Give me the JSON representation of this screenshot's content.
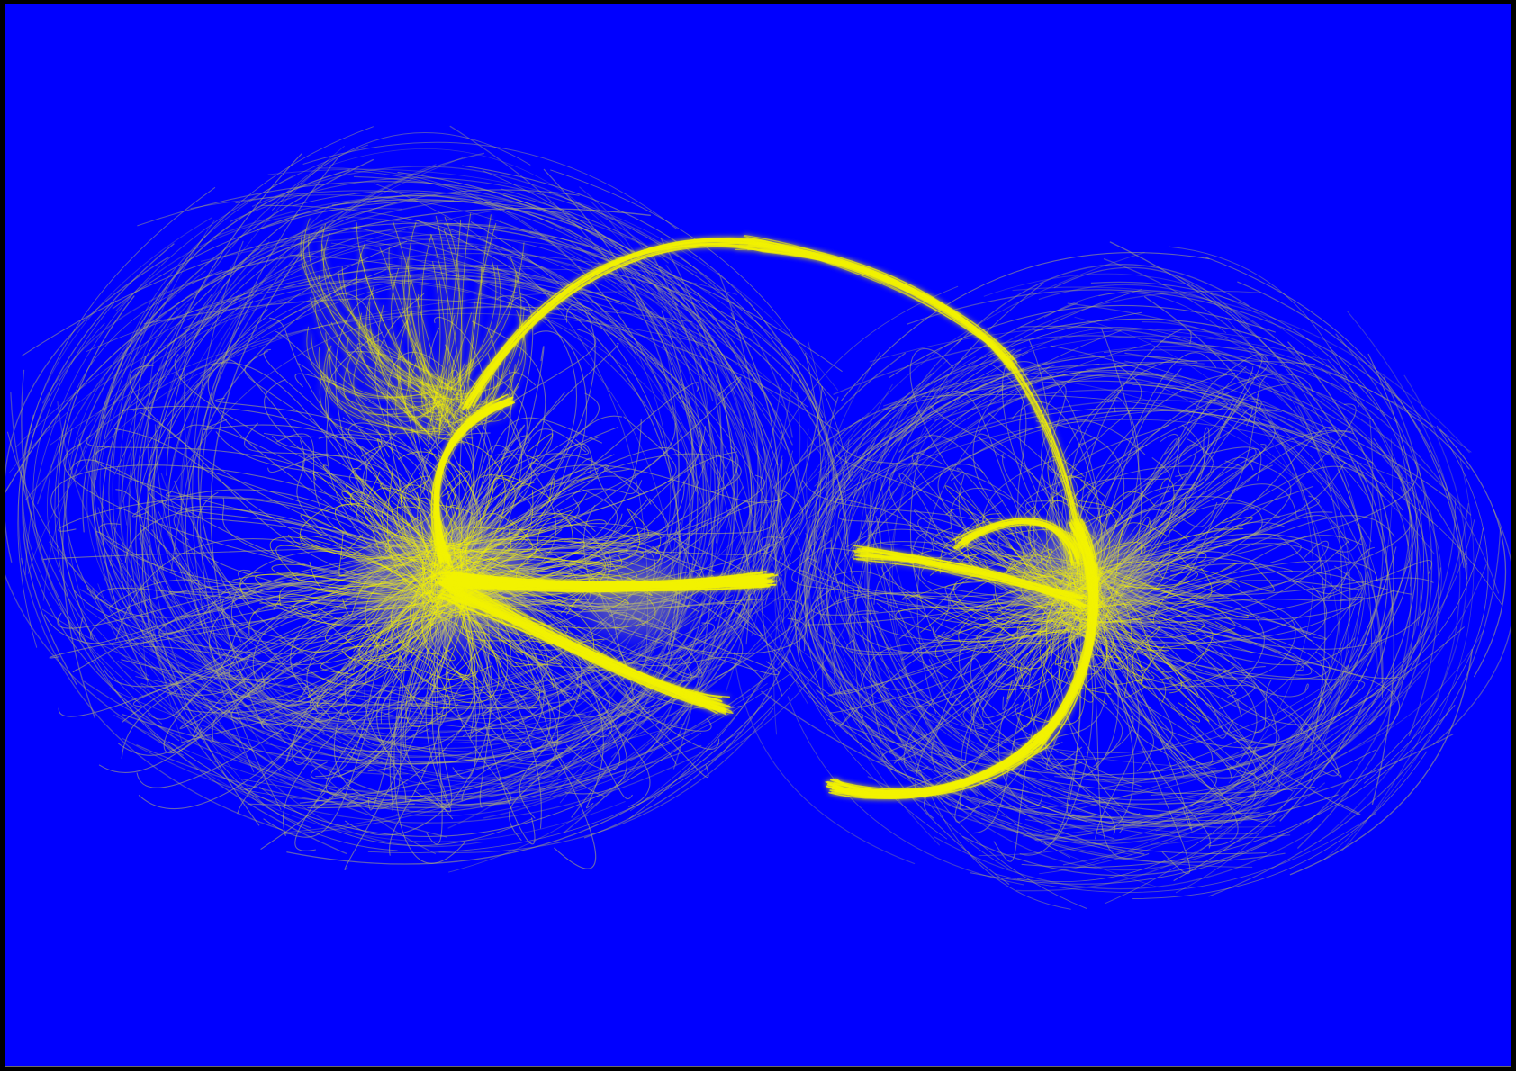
{
  "image": {
    "background_color": "#0000FF",
    "frame_color": "#000000",
    "fiber_color": "#F2F200",
    "fiber_faint_color": "#B8B870",
    "glow_color": "#FFFF33",
    "text": []
  }
}
